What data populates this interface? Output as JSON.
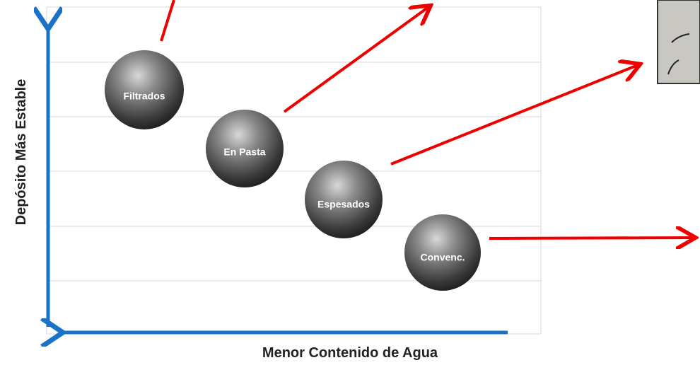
{
  "axes": {
    "y_label": "Depósito Más Estable",
    "x_label": "Menor Contenido de Agua"
  },
  "nodes": [
    {
      "label": "Filtrados"
    },
    {
      "label": "En Pasta"
    },
    {
      "label": "Espesados"
    },
    {
      "label": "Convenc."
    }
  ]
}
